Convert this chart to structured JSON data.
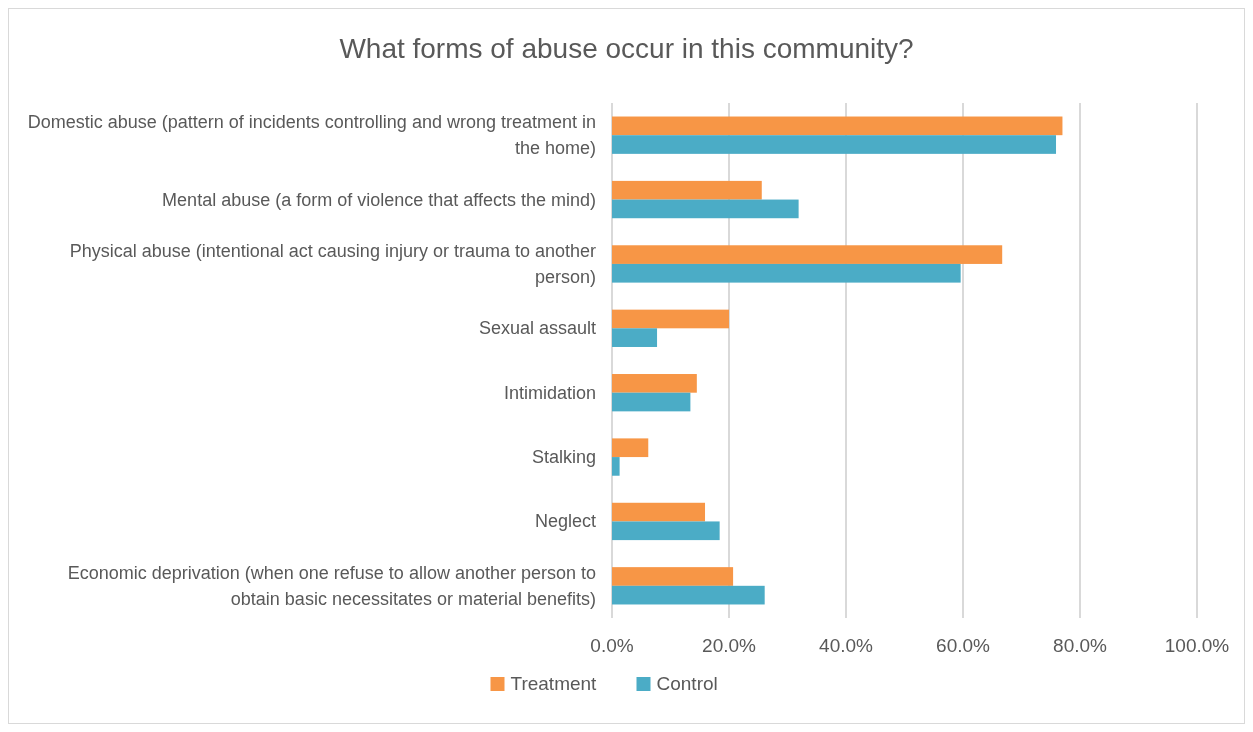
{
  "chart_data": {
    "type": "bar",
    "orientation": "horizontal",
    "title": "What forms of abuse occur in this community?",
    "categories": [
      "Domestic abuse (pattern of incidents controlling and wrong treatment in the home)",
      "Mental abuse (a form of violence that affects the mind)",
      "Physical abuse (intentional act causing injury or trauma to another person)",
      "Sexual assault",
      "Intimidation",
      "Stalking",
      "Neglect",
      "Economic deprivation (when one refuse to allow another person to obtain basic necessitates or material benefits)"
    ],
    "series": [
      {
        "name": "Treatment",
        "color": "#f79646",
        "values": [
          77.0,
          25.6,
          66.7,
          20.0,
          14.5,
          6.2,
          15.9,
          20.7
        ]
      },
      {
        "name": "Control",
        "color": "#4bacc6",
        "values": [
          75.9,
          31.9,
          59.6,
          7.7,
          13.4,
          1.3,
          18.4,
          26.1
        ]
      }
    ],
    "xlim": [
      0,
      100
    ],
    "xticks": [
      {
        "value": 0,
        "label": "0.0%"
      },
      {
        "value": 20,
        "label": "20.0%"
      },
      {
        "value": 40,
        "label": "40.0%"
      },
      {
        "value": 60,
        "label": "60.0%"
      },
      {
        "value": 80,
        "label": "80.0%"
      },
      {
        "value": 100,
        "label": "100.0%"
      }
    ],
    "grid": "x",
    "legend": "bottom"
  }
}
